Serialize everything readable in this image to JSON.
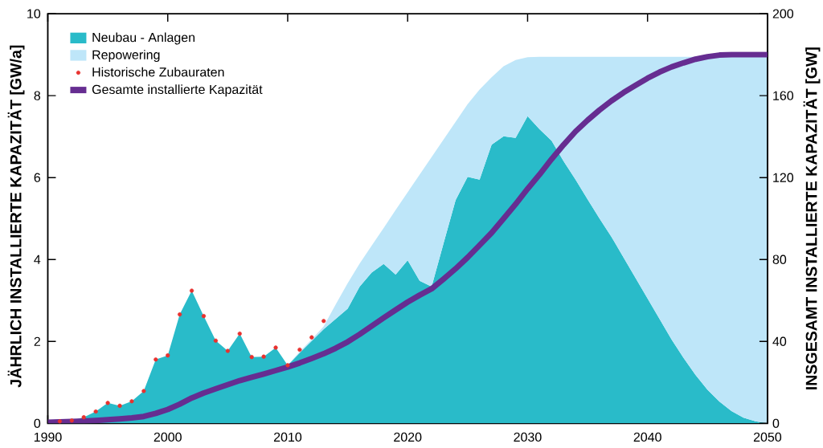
{
  "chart_data": {
    "type": "area",
    "stacked": true,
    "legend": "top left",
    "ylabel": "JÄHRLICH INSTALLIERTE KAPAZITÄT [GW/a]",
    "y2label": "INSGESAMT INSTALLIERTE KAPAZITÄT [GW]",
    "xlim": [
      1990,
      2050
    ],
    "xticks": [
      1990,
      2000,
      2010,
      2020,
      2030,
      2040,
      2050
    ],
    "ylim": [
      0,
      10
    ],
    "yticks": [
      0,
      2,
      4,
      6,
      8,
      10
    ],
    "y2lim": [
      0,
      200
    ],
    "y2ticks": [
      0,
      40,
      80,
      120,
      160,
      200
    ],
    "x": [
      1990,
      1991,
      1992,
      1993,
      1994,
      1995,
      1996,
      1997,
      1998,
      1999,
      2000,
      2001,
      2002,
      2003,
      2004,
      2005,
      2006,
      2007,
      2008,
      2009,
      2010,
      2011,
      2012,
      2013,
      2014,
      2015,
      2016,
      2017,
      2018,
      2019,
      2020,
      2021,
      2022,
      2023,
      2024,
      2025,
      2026,
      2027,
      2028,
      2029,
      2030,
      2031,
      2032,
      2033,
      2034,
      2035,
      2036,
      2037,
      2038,
      2039,
      2040,
      2041,
      2042,
      2043,
      2044,
      2045,
      2046,
      2047,
      2048,
      2049,
      2050
    ],
    "series": [
      {
        "name": "Neubau - Anlagen",
        "color": "#29bbc9",
        "values": [
          0.0,
          0.05,
          0.07,
          0.15,
          0.29,
          0.5,
          0.43,
          0.54,
          0.79,
          1.56,
          1.66,
          2.66,
          3.24,
          2.62,
          2.02,
          1.77,
          2.19,
          1.62,
          1.63,
          1.85,
          1.42,
          1.72,
          2.01,
          2.3,
          2.55,
          2.8,
          3.34,
          3.68,
          3.89,
          3.63,
          3.98,
          3.48,
          3.34,
          4.4,
          5.45,
          6.02,
          5.95,
          6.8,
          7.01,
          6.97,
          7.5,
          7.18,
          6.9,
          6.4,
          5.95,
          5.47,
          5.0,
          4.55,
          4.05,
          3.55,
          3.05,
          2.55,
          2.05,
          1.6,
          1.18,
          0.82,
          0.53,
          0.3,
          0.14,
          0.05,
          0.0
        ]
      },
      {
        "name": "Repowering",
        "color": "#bee6f9",
        "values": [
          0,
          0,
          0,
          0,
          0,
          0,
          0,
          0,
          0,
          0,
          0,
          0,
          0,
          0,
          0,
          0,
          0,
          0,
          0,
          0,
          0,
          0.03,
          0.04,
          0.07,
          0.35,
          0.62,
          0.56,
          0.66,
          0.88,
          1.58,
          1.66,
          2.59,
          3.16,
          2.53,
          1.91,
          1.77,
          2.2,
          1.65,
          1.71,
          1.9,
          1.44,
          1.77,
          2.05,
          2.55,
          3.0,
          3.48,
          3.95,
          4.4,
          4.9,
          5.4,
          5.9,
          6.4,
          6.9,
          7.35,
          7.77,
          8.13,
          8.42,
          8.65,
          8.81,
          8.9,
          8.95
        ]
      },
      {
        "name": "Historische Zubauraten",
        "type": "scatter",
        "marker": "circle",
        "color": "#e8322f",
        "x": [
          1991,
          1992,
          1993,
          1994,
          1995,
          1996,
          1997,
          1998,
          1999,
          2000,
          2001,
          2002,
          2003,
          2004,
          2005,
          2006,
          2007,
          2008,
          2009,
          2010,
          2011,
          2012,
          2013
        ],
        "values": [
          0.05,
          0.07,
          0.15,
          0.29,
          0.5,
          0.43,
          0.54,
          0.79,
          1.56,
          1.66,
          2.66,
          3.24,
          2.62,
          2.02,
          1.77,
          2.19,
          1.62,
          1.63,
          1.85,
          1.42,
          1.8,
          2.1,
          2.5
        ]
      },
      {
        "name": "Gesamte installierte Kapazität",
        "type": "line",
        "axis": "y2",
        "line_style": "solid",
        "color": "#662d91",
        "values": [
          0.5,
          0.7,
          0.9,
          1.1,
          1.4,
          1.8,
          2.2,
          2.7,
          3.4,
          4.9,
          6.8,
          9.4,
          12.4,
          14.8,
          16.9,
          18.9,
          20.9,
          22.5,
          24.1,
          25.8,
          27.5,
          29.5,
          31.7,
          34.0,
          36.7,
          39.8,
          43.5,
          47.5,
          51.5,
          55.4,
          59.2,
          62.6,
          65.7,
          70.5,
          75.5,
          81.0,
          87.0,
          93.0,
          100.0,
          107.0,
          114.5,
          121.5,
          129.0,
          136.0,
          142.5,
          148.0,
          153.0,
          157.5,
          161.5,
          165.0,
          168.5,
          171.5,
          174.0,
          176.0,
          177.8,
          179.0,
          179.8,
          180.0,
          180.0,
          180.0,
          180.0
        ]
      }
    ]
  }
}
